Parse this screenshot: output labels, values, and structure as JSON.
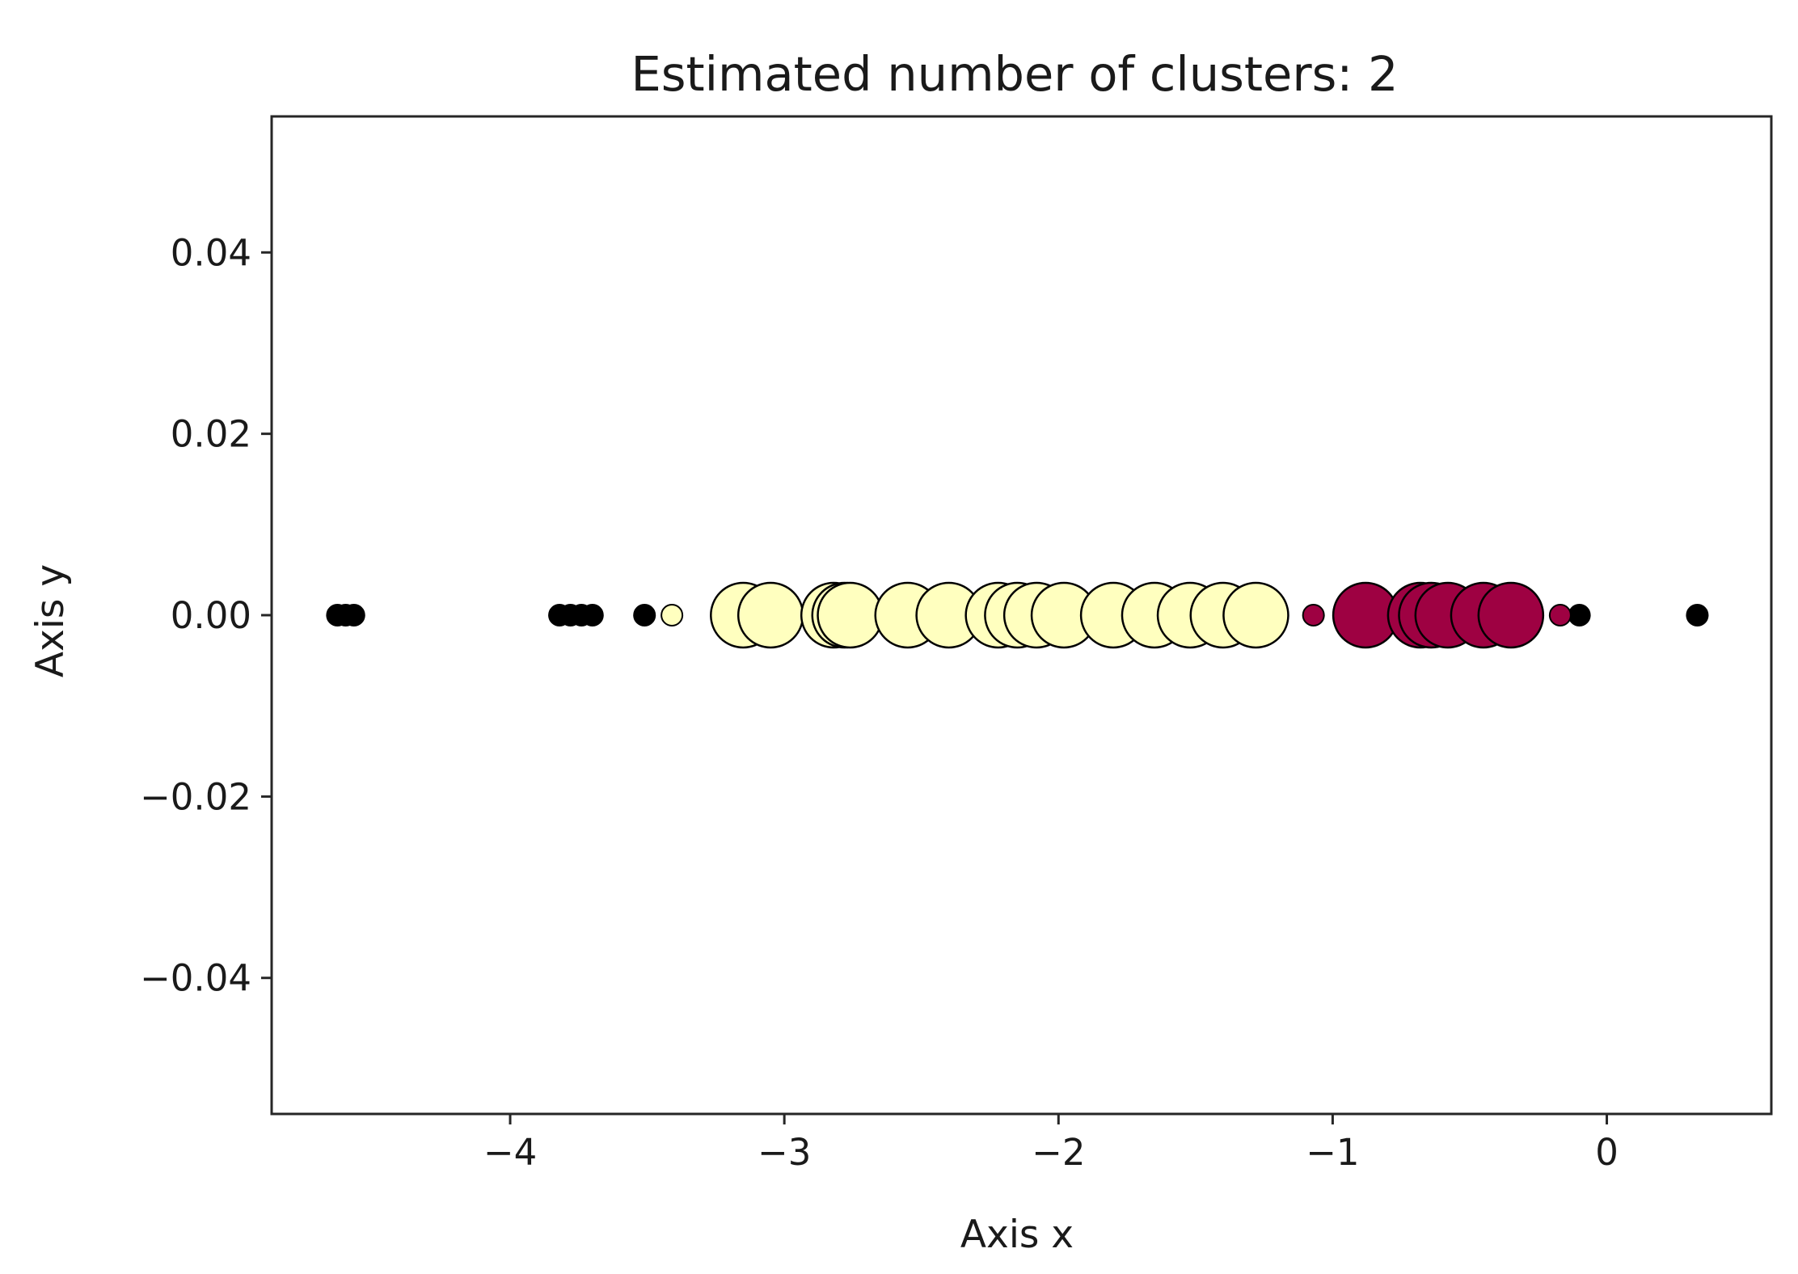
{
  "chart_data": {
    "type": "scatter",
    "title": "Estimated number of clusters: 2",
    "xlabel": "Axis x",
    "ylabel": "Axis y",
    "xlim": [
      -4.87,
      0.6
    ],
    "ylim": [
      -0.055,
      0.055
    ],
    "xticks": [
      {
        "value": -4,
        "label": "−4"
      },
      {
        "value": -3,
        "label": "−3"
      },
      {
        "value": -2,
        "label": "−2"
      },
      {
        "value": -1,
        "label": "−1"
      },
      {
        "value": 0,
        "label": "0"
      }
    ],
    "yticks": [
      {
        "value": 0.04,
        "label": "0.04"
      },
      {
        "value": 0.02,
        "label": "0.02"
      },
      {
        "value": 0.0,
        "label": "0.00"
      },
      {
        "value": -0.02,
        "label": "−0.02"
      },
      {
        "value": -0.04,
        "label": "−0.04"
      }
    ],
    "grid": false,
    "legend": "none",
    "colors": {
      "cluster_0": "#9e0142",
      "cluster_1": "#ffffbf",
      "noise": "#000000",
      "edge": "#000000"
    },
    "series": [
      {
        "cluster": "noise",
        "points": [
          {
            "x": -4.63,
            "y": 0,
            "size": "small"
          },
          {
            "x": -4.6,
            "y": 0,
            "size": "small"
          },
          {
            "x": -4.57,
            "y": 0,
            "size": "small"
          },
          {
            "x": -3.82,
            "y": 0,
            "size": "small"
          },
          {
            "x": -3.78,
            "y": 0,
            "size": "small"
          },
          {
            "x": -3.74,
            "y": 0,
            "size": "small"
          },
          {
            "x": -3.7,
            "y": 0,
            "size": "small"
          },
          {
            "x": -3.51,
            "y": 0,
            "size": "small"
          },
          {
            "x": -0.1,
            "y": 0,
            "size": "small"
          },
          {
            "x": 0.33,
            "y": 0,
            "size": "small"
          }
        ]
      },
      {
        "cluster": "cluster_1",
        "points": [
          {
            "x": -3.41,
            "y": 0,
            "size": "small"
          },
          {
            "x": -3.15,
            "y": 0,
            "size": "large"
          },
          {
            "x": -3.05,
            "y": 0,
            "size": "large"
          },
          {
            "x": -2.82,
            "y": 0,
            "size": "large"
          },
          {
            "x": -2.78,
            "y": 0,
            "size": "large"
          },
          {
            "x": -2.76,
            "y": 0,
            "size": "large"
          },
          {
            "x": -2.55,
            "y": 0,
            "size": "large"
          },
          {
            "x": -2.4,
            "y": 0,
            "size": "large"
          },
          {
            "x": -2.22,
            "y": 0,
            "size": "large"
          },
          {
            "x": -2.15,
            "y": 0,
            "size": "large"
          },
          {
            "x": -2.08,
            "y": 0,
            "size": "large"
          },
          {
            "x": -1.98,
            "y": 0,
            "size": "large"
          },
          {
            "x": -1.8,
            "y": 0,
            "size": "large"
          },
          {
            "x": -1.65,
            "y": 0,
            "size": "large"
          },
          {
            "x": -1.52,
            "y": 0,
            "size": "large"
          },
          {
            "x": -1.4,
            "y": 0,
            "size": "large"
          },
          {
            "x": -1.28,
            "y": 0,
            "size": "large"
          }
        ]
      },
      {
        "cluster": "cluster_0",
        "points": [
          {
            "x": -1.07,
            "y": 0,
            "size": "small"
          },
          {
            "x": -0.88,
            "y": 0,
            "size": "large"
          },
          {
            "x": -0.68,
            "y": 0,
            "size": "large"
          },
          {
            "x": -0.64,
            "y": 0,
            "size": "large"
          },
          {
            "x": -0.58,
            "y": 0,
            "size": "large"
          },
          {
            "x": -0.45,
            "y": 0,
            "size": "large"
          },
          {
            "x": -0.35,
            "y": 0,
            "size": "large"
          },
          {
            "x": -0.17,
            "y": 0,
            "size": "small"
          }
        ]
      }
    ]
  }
}
